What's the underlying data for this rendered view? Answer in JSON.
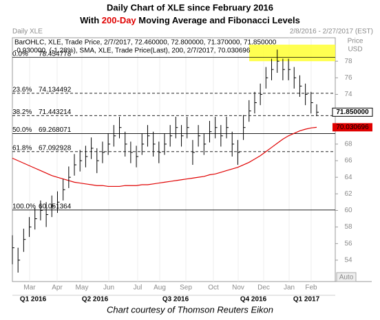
{
  "chart_data": {
    "type": "ohlc",
    "title": "Daily Chart of XLE since February 2016",
    "subtitle_parts": [
      "With ",
      "200-Day",
      " Moving Average and Fibonacci Levels"
    ],
    "chart_name": "Daily XLE",
    "date_range": "2/8/2016 - 2/27/2017 (EST)",
    "price_label": "Price",
    "currency_label": "USD",
    "legend_ohlc": "BarOHLC, XLE, Trade Price, 2/7/2017, 72.460000, 72.800000, 71.370000, 71.850000",
    "legend_sma": "-0.930000, (-1.28%), SMA, XLE, Trade Price(Last), 200, 2/7/2017, 70.030696",
    "caption": "Chart courtesy of Thomson Reuters Eikon",
    "auto_button": "Auto",
    "months": [
      "Mar",
      "Apr",
      "May",
      "Jun",
      "Jul",
      "Aug",
      "Sep",
      "Oct",
      "Nov",
      "Dec",
      "Jan",
      "Feb"
    ],
    "quarters": [
      "Q1 2016",
      "Q2 2016",
      "Q3 2016",
      "Q4 2016",
      "Q1 2017"
    ],
    "ylim": [
      52,
      80
    ],
    "yticks": [
      54,
      56,
      58,
      60,
      62,
      64,
      66,
      68,
      70,
      72,
      74,
      76,
      78
    ],
    "bar_color": "#000000",
    "high": [
      57,
      55.5,
      57.8,
      59.2,
      60.3,
      61.2,
      61,
      61.8,
      62.3,
      63.8,
      65.3,
      66.8,
      67.3,
      67.8,
      68.8,
      67.5,
      68.3,
      69.3,
      70.3,
      71.3,
      69.5,
      68.3,
      67.8,
      69.3,
      70.3,
      69.5,
      68.3,
      69.3,
      70.3,
      71.3,
      70.3,
      71.3,
      68.5,
      70.3,
      69.3,
      70.8,
      71.3,
      70.3,
      71.3,
      69.5,
      68.5,
      71.5,
      73.3,
      74.3,
      75.3,
      77.3,
      78.3,
      79.4,
      78.3,
      78.3,
      77.3,
      76.3,
      75.3,
      74.3,
      72.8
    ],
    "low": [
      53.5,
      52.5,
      55,
      56.8,
      57.7,
      58.8,
      58,
      59.2,
      59.7,
      61.2,
      62.7,
      64.2,
      64.7,
      65.2,
      66.2,
      64.5,
      65.7,
      66.7,
      67.7,
      68.7,
      66.5,
      65.7,
      65.2,
      66.7,
      67.7,
      66.5,
      65.7,
      66.7,
      67.7,
      68.7,
      67.7,
      68.7,
      65.5,
      67.7,
      66.7,
      68.2,
      68.7,
      67.7,
      68.7,
      66.5,
      65.5,
      68.5,
      70.7,
      71.7,
      72.7,
      74.7,
      75.7,
      76.6,
      75.7,
      75.7,
      74.7,
      73.7,
      72.7,
      71.7,
      71.37
    ],
    "close": [
      55.5,
      54,
      56.5,
      58,
      59,
      60,
      59.5,
      60.5,
      61,
      62.5,
      64,
      65.5,
      66,
      66.5,
      67.5,
      66,
      67,
      68,
      69,
      70,
      68,
      67,
      66.5,
      68,
      69,
      68,
      67,
      68,
      69,
      70,
      69,
      70,
      67,
      69,
      68,
      69.5,
      70,
      69,
      70,
      68,
      67,
      70,
      72,
      73,
      74,
      76,
      77,
      78,
      77,
      77,
      76,
      75,
      74,
      73,
      71.85
    ],
    "last_price": 71.85,
    "last_price_label": "71.850000",
    "sma": {
      "color": "#e00000",
      "values": [
        66.3,
        66.0,
        65.7,
        65.4,
        65.1,
        64.8,
        64.5,
        64.2,
        64.0,
        63.8,
        63.6,
        63.4,
        63.3,
        63.2,
        63.1,
        63.0,
        63.0,
        62.9,
        62.9,
        62.9,
        63.0,
        63.0,
        63.0,
        63.1,
        63.1,
        63.2,
        63.3,
        63.4,
        63.5,
        63.6,
        63.7,
        63.8,
        63.9,
        64.0,
        64.1,
        64.3,
        64.4,
        64.6,
        64.8,
        65.0,
        65.2,
        65.5,
        65.8,
        66.2,
        66.6,
        67.1,
        67.6,
        68.1,
        68.6,
        69.0,
        69.3,
        69.6,
        69.8,
        69.95,
        70.030696
      ]
    },
    "sma_last": 70.030696,
    "sma_last_label": "70.030696",
    "fib": [
      {
        "pct": "0.0%",
        "value": 78.454778,
        "label": "78.454778",
        "style": "solid"
      },
      {
        "pct": "23.6%",
        "value": 74.134492,
        "label": "74.134492",
        "style": "dashed"
      },
      {
        "pct": "38.2%",
        "value": 71.443214,
        "label": "71.443214",
        "style": "dashed"
      },
      {
        "pct": "50.0%",
        "value": 69.268071,
        "label": "69.268071",
        "style": "solid"
      },
      {
        "pct": "61.8%",
        "value": 67.092928,
        "label": "67.092928",
        "style": "dashed"
      },
      {
        "pct": "100.0%",
        "value": 60.051364,
        "label": "60.051364",
        "style": "solid"
      }
    ],
    "highlight": {
      "ylim": [
        78,
        80
      ],
      "color": "#ffff33"
    }
  }
}
